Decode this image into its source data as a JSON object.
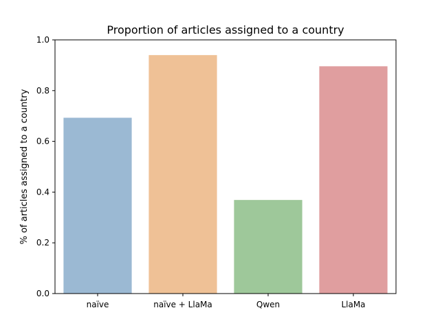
{
  "chart_data": {
    "type": "bar",
    "title": "Proportion of articles assigned to a country",
    "xlabel": "",
    "ylabel": "% of articles assigned to a country",
    "categories": [
      "naïve",
      "naïve + LlaMa",
      "Qwen",
      "LlaMa"
    ],
    "values": [
      0.693,
      0.94,
      0.369,
      0.896
    ],
    "colors": [
      "#9bb9d3",
      "#efc196",
      "#9ec89a",
      "#e09e9f"
    ],
    "ylim": [
      0,
      1.0
    ],
    "yticks": [
      "0.0",
      "0.2",
      "0.4",
      "0.6",
      "0.8",
      "1.0"
    ],
    "grid": false,
    "legend": "none"
  }
}
